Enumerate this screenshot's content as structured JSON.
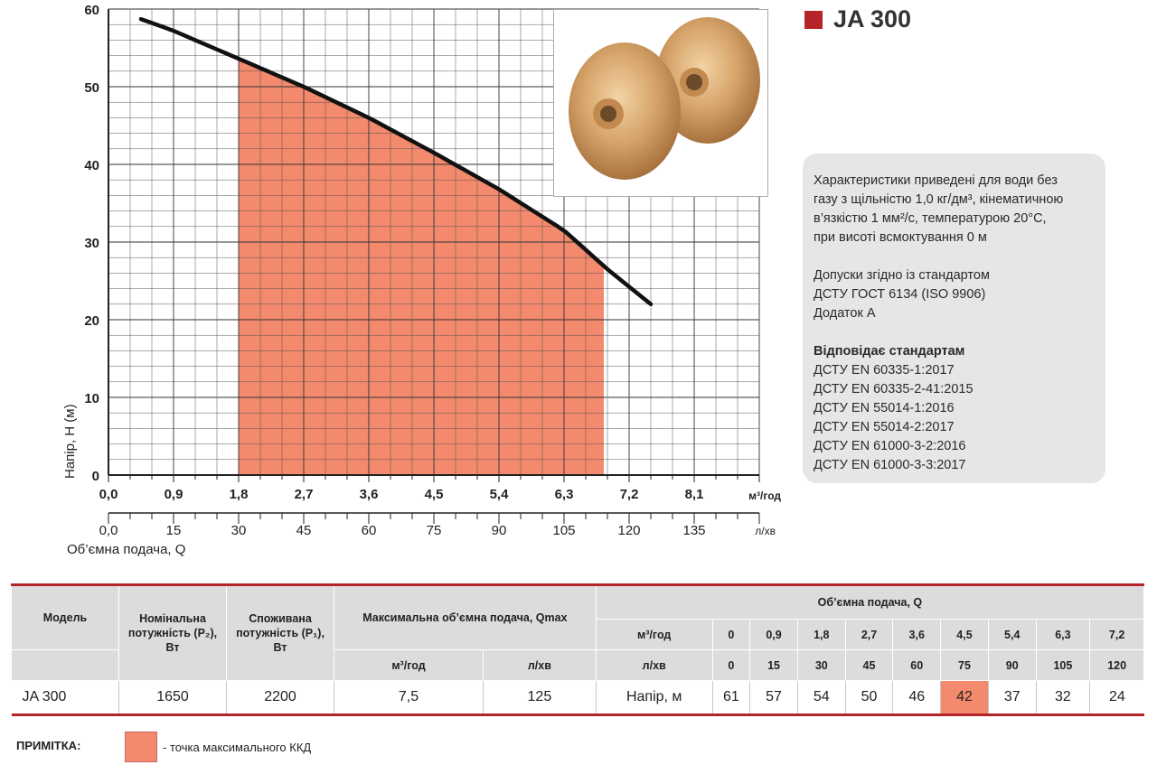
{
  "model": {
    "name": "JA 300",
    "accent_color": "#b52428"
  },
  "chart_data": {
    "type": "line",
    "ylabel": "Напір, Н (м)",
    "xlabel": "Об’ємна подача, Q",
    "x_unit_primary": "м³/год",
    "x_unit_secondary": "л/хв",
    "ylim": [
      0,
      60
    ],
    "xlim": [
      0,
      9.0
    ],
    "yticks": [
      "0",
      "10",
      "20",
      "30",
      "40",
      "50",
      "60"
    ],
    "xticks_primary": [
      "0,0",
      "0,9",
      "1,8",
      "2,7",
      "3,6",
      "4,5",
      "5,4",
      "6,3",
      "7,2",
      "8,1"
    ],
    "xticks_secondary": [
      "0,0",
      "15",
      "30",
      "45",
      "60",
      "75",
      "90",
      "105",
      "120",
      "135"
    ],
    "series": [
      {
        "name": "JA 300",
        "x": [
          0.45,
          0.9,
          1.8,
          2.7,
          3.6,
          4.5,
          5.4,
          6.3,
          6.9,
          7.5
        ],
        "y": [
          58.7,
          57.2,
          53.6,
          50,
          46,
          41.5,
          36.8,
          31.5,
          26.5,
          22
        ]
      }
    ],
    "efficiency_zone": {
      "x_start": 1.8,
      "x_end": 6.85,
      "color": "#f3896d"
    }
  },
  "info": {
    "lines": [
      "Характеристики приведені для води без",
      "газу з щільністю 1,0 кг/дм³, кінематичною",
      "в’язкістю 1 мм²/с, температурою 20°С,",
      "при висоті всмоктування 0 м"
    ],
    "tolerance_lines": [
      "Допуски згідно із стандартом",
      "ДСТУ ГОСТ 6134 (ISO 9906)",
      "Додаток А"
    ],
    "standards_title": "Відповідає стандартам",
    "standards": [
      "ДСТУ EN 60335-1:2017",
      "ДСТУ EN 60335-2-41:2015",
      "ДСТУ EN 55014-1:2016",
      "ДСТУ EN 55014-2:2017",
      "ДСТУ EN 61000-3-2:2016",
      "ДСТУ EN 61000-3-3:2017"
    ]
  },
  "table": {
    "headers": {
      "model": "Модель",
      "nominal_power": "Номінальна потужність (P₂), Вт",
      "consumed_power": "Споживана потужність (P₁), Вт",
      "qmax": "Максимальна об’ємна подача, Qmax",
      "flow": "Об’ємна подача, Q",
      "unit_m3h": "м³/год",
      "unit_lmin": "л/хв"
    },
    "flow_m3h": [
      "0",
      "0,9",
      "1,8",
      "2,7",
      "3,6",
      "4,5",
      "5,4",
      "6,3",
      "7,2"
    ],
    "flow_lmin": [
      "0",
      "15",
      "30",
      "45",
      "60",
      "75",
      "90",
      "105",
      "120"
    ],
    "row": {
      "model": "JA 300",
      "p2": "1650",
      "p1": "2200",
      "qmax_m3h": "7,5",
      "qmax_lmin": "125",
      "head_label": "Напір, м",
      "heads": [
        "61",
        "57",
        "54",
        "50",
        "46",
        "42",
        "37",
        "32",
        "24"
      ]
    },
    "highlight_index": 5,
    "highlight_color": "#f3896d"
  },
  "note": {
    "label": "ПРИМІТКА:",
    "text": "- точка максимального ККД"
  }
}
